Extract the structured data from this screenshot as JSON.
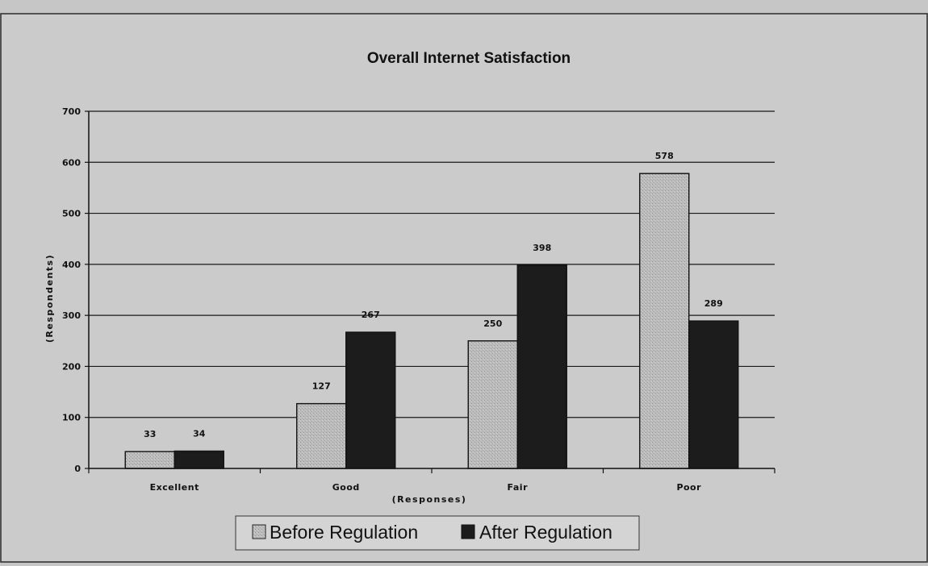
{
  "chart_data": {
    "type": "bar",
    "title": "Overall Internet Satisfaction",
    "xlabel": "(Responses)",
    "ylabel": "(Respondents)",
    "categories": [
      "Excellent",
      "Good",
      "Fair",
      "Poor"
    ],
    "ylim": [
      0,
      700
    ],
    "yticks": [
      0,
      100,
      200,
      300,
      400,
      500,
      600,
      700
    ],
    "grid": true,
    "legend_position": "bottom",
    "series": [
      {
        "name": "Before Regulation",
        "values": [
          33,
          127,
          250,
          578
        ],
        "color": "#b9b9b9"
      },
      {
        "name": "After Regulation",
        "values": [
          34,
          267,
          398,
          289
        ],
        "color": "#1c1c1c"
      }
    ]
  }
}
